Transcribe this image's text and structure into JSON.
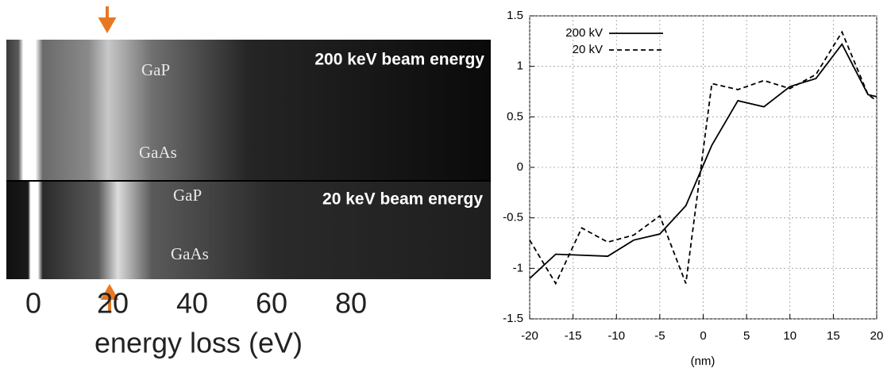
{
  "chart_data": [
    {
      "type": "image",
      "xlabel": "energy loss (eV)",
      "xlim": [
        -6.8,
        115.2
      ],
      "xticks": [
        0,
        20,
        40,
        60,
        80
      ],
      "annotations": [
        "200 keV beam energy",
        "GaP",
        "GaAs",
        "20 keV beam energy",
        "GaP",
        "GaAs"
      ]
    },
    {
      "type": "line",
      "xlabel": "(nm)",
      "x": [
        -20,
        -17,
        -14,
        -11,
        -8,
        -5,
        -2,
        1,
        4,
        7,
        10,
        13,
        16,
        19,
        20
      ],
      "series": [
        {
          "name": "200 kV",
          "color": "#000000",
          "linestyle": "solid",
          "values": [
            -1.1,
            -0.86,
            -0.87,
            -0.88,
            -0.72,
            -0.66,
            -0.38,
            0.22,
            0.66,
            0.6,
            0.8,
            0.88,
            1.22,
            0.72,
            0.7
          ]
        },
        {
          "name": "20 kV",
          "color": "#000000",
          "linestyle": "dashed",
          "values": [
            -0.72,
            -1.15,
            -0.6,
            -0.74,
            -0.67,
            -0.48,
            -1.15,
            0.83,
            0.77,
            0.86,
            0.78,
            0.92,
            1.34,
            0.72,
            0.66
          ]
        }
      ],
      "xlim": [
        -20,
        20
      ],
      "ylim": [
        -1.5,
        1.5
      ],
      "xticks": [
        -20,
        -15,
        -10,
        -5,
        0,
        5,
        10,
        15,
        20
      ],
      "yticks": [
        -1.5,
        -1,
        -0.5,
        0,
        0.5,
        1,
        1.5
      ],
      "grid": true,
      "legend": "upper-left"
    }
  ]
}
